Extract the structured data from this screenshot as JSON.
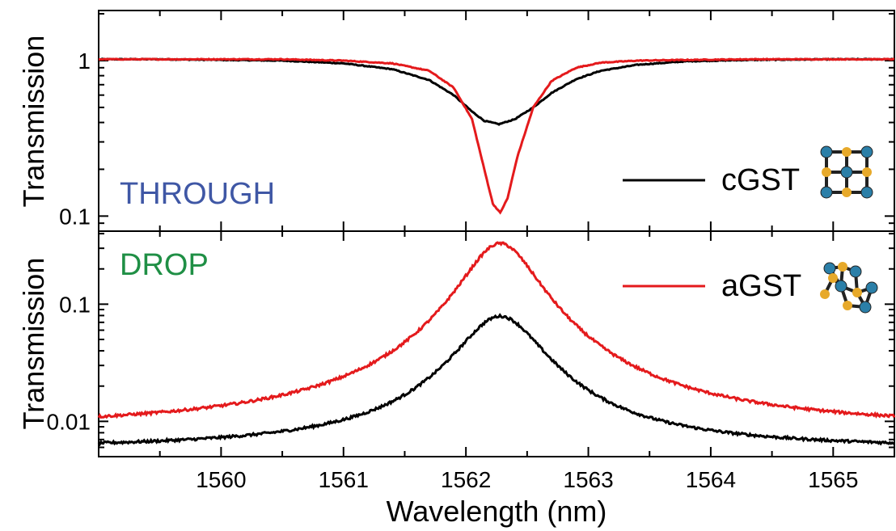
{
  "chart_data": [
    {
      "type": "line",
      "panel": "THROUGH",
      "panel_label": "THROUGH",
      "panel_label_color": "#3f57a5",
      "xlabel": "",
      "ylabel": "Transmission",
      "yscale": "log",
      "xlim": [
        1559.0,
        1565.5
      ],
      "ylim": [
        0.08,
        2.1
      ],
      "yticks": [
        {
          "value": 1,
          "label": "1"
        },
        {
          "value": 0.1,
          "label": "0.1"
        }
      ],
      "series": [
        {
          "name": "cGST",
          "color": "#000000",
          "center": 1562.27,
          "x": [
            1559.0,
            1559.5,
            1560.0,
            1560.5,
            1561.0,
            1561.4,
            1561.7,
            1561.9,
            1562.05,
            1562.15,
            1562.27,
            1562.4,
            1562.55,
            1562.7,
            1562.9,
            1563.1,
            1563.4,
            1563.8,
            1564.3,
            1565.0,
            1565.5
          ],
          "y": [
            1.02,
            1.02,
            1.01,
            1.0,
            0.96,
            0.88,
            0.75,
            0.6,
            0.47,
            0.41,
            0.39,
            0.42,
            0.5,
            0.62,
            0.76,
            0.86,
            0.94,
            0.99,
            1.01,
            1.02,
            1.02
          ]
        },
        {
          "name": "aGST",
          "color": "#e41a1c",
          "center": 1562.28,
          "x": [
            1559.0,
            1559.5,
            1560.0,
            1560.5,
            1561.0,
            1561.4,
            1561.7,
            1561.9,
            1562.05,
            1562.15,
            1562.22,
            1562.28,
            1562.34,
            1562.42,
            1562.55,
            1562.7,
            1562.9,
            1563.1,
            1563.4,
            1563.8,
            1564.3,
            1565.0,
            1565.5
          ],
          "y": [
            1.02,
            1.02,
            1.02,
            1.02,
            1.0,
            0.96,
            0.86,
            0.67,
            0.42,
            0.2,
            0.12,
            0.105,
            0.13,
            0.24,
            0.5,
            0.74,
            0.9,
            0.97,
            1.0,
            1.01,
            1.02,
            1.02,
            1.02
          ]
        }
      ]
    },
    {
      "type": "line",
      "panel": "DROP",
      "panel_label": "DROP",
      "panel_label_color": "#1f8f45",
      "xlabel": "Wavelength (nm)",
      "ylabel": "Transmission",
      "yscale": "log",
      "xlim": [
        1559.0,
        1565.5
      ],
      "ylim": [
        0.005,
        0.42
      ],
      "xticks": [
        1560,
        1561,
        1562,
        1563,
        1564,
        1565
      ],
      "yticks": [
        {
          "value": 0.1,
          "label": "0.1"
        },
        {
          "value": 0.01,
          "label": "0.01"
        }
      ],
      "series": [
        {
          "name": "cGST",
          "color": "#000000",
          "peak": 0.079,
          "center": 1562.28,
          "hwhm": 0.33,
          "baseline": 0.0058
        },
        {
          "name": "aGST",
          "color": "#e41a1c",
          "peak": 0.33,
          "center": 1562.28,
          "hwhm": 0.29,
          "baseline": 0.0085
        }
      ]
    }
  ],
  "legend": [
    {
      "name": "cGST",
      "color": "#000000",
      "icon": "crystalline-lattice-icon"
    },
    {
      "name": "aGST",
      "color": "#e41a1c",
      "icon": "amorphous-lattice-icon"
    }
  ],
  "colors": {
    "atom_blue": "#2b7fa8",
    "atom_yellow": "#e7a92a"
  }
}
